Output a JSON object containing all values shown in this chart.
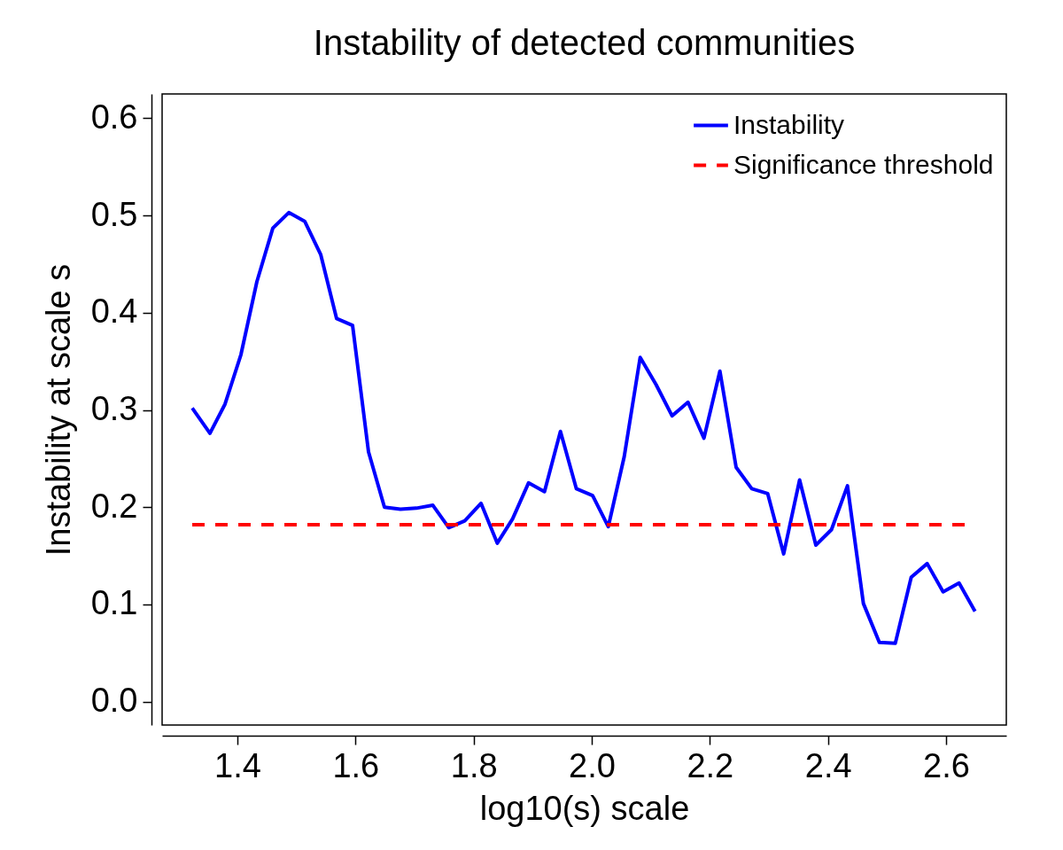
{
  "chart_data": {
    "type": "line",
    "title": "Instability of detected communities",
    "xlabel": "log10(s) scale",
    "ylabel": "Instability at scale s",
    "x": [
      1.3235,
      1.3535,
      1.379,
      1.406,
      1.433,
      1.46,
      1.487,
      1.514,
      1.541,
      1.568,
      1.595,
      1.622,
      1.649,
      1.676,
      1.703,
      1.731,
      1.758,
      1.785,
      1.8125,
      1.84,
      1.866,
      1.893,
      1.92,
      1.947,
      1.974,
      2.0015,
      2.028,
      2.055,
      2.082,
      2.109,
      2.136,
      2.163,
      2.19,
      2.217,
      2.2445,
      2.271,
      2.298,
      2.325,
      2.352,
      2.3795,
      2.406,
      2.433,
      2.46,
      2.487,
      2.514,
      2.541,
      2.568,
      2.595,
      2.622,
      2.649
    ],
    "series": [
      {
        "name": "Instability",
        "color": "#0000ff",
        "values": [
          0.302,
          0.276,
          0.306,
          0.357,
          0.432,
          0.487,
          0.503,
          0.494,
          0.46,
          0.394,
          0.387,
          0.257,
          0.2,
          0.198,
          0.199,
          0.202,
          0.179,
          0.186,
          0.204,
          0.163,
          0.188,
          0.225,
          0.216,
          0.278,
          0.219,
          0.212,
          0.18,
          0.252,
          0.354,
          0.326,
          0.294,
          0.308,
          0.271,
          0.34,
          0.241,
          0.219,
          0.214,
          0.152,
          0.228,
          0.161,
          0.177,
          0.222,
          0.101,
          0.061,
          0.06,
          0.128,
          0.142,
          0.113,
          0.122,
          0.093
        ]
      }
    ],
    "ref_lines": [
      {
        "axis": "y",
        "value": 0.182,
        "label": "Significance threshold",
        "color": "#ff0000",
        "line_style": "dashed"
      }
    ],
    "xlim": [
      1.2725,
      2.702
    ],
    "ylim": [
      -0.024,
      0.625
    ],
    "xticks": [
      1.4,
      1.6,
      1.8,
      {
        "value": 2,
        "label": "2.0"
      },
      2.2,
      2.4,
      2.6
    ],
    "yticks": [
      {
        "value": 0,
        "label": "0.0"
      },
      0.1,
      0.2,
      0.3,
      0.4,
      0.5,
      0.6
    ],
    "grid": false,
    "legend": "top right",
    "line_style": "solid"
  }
}
